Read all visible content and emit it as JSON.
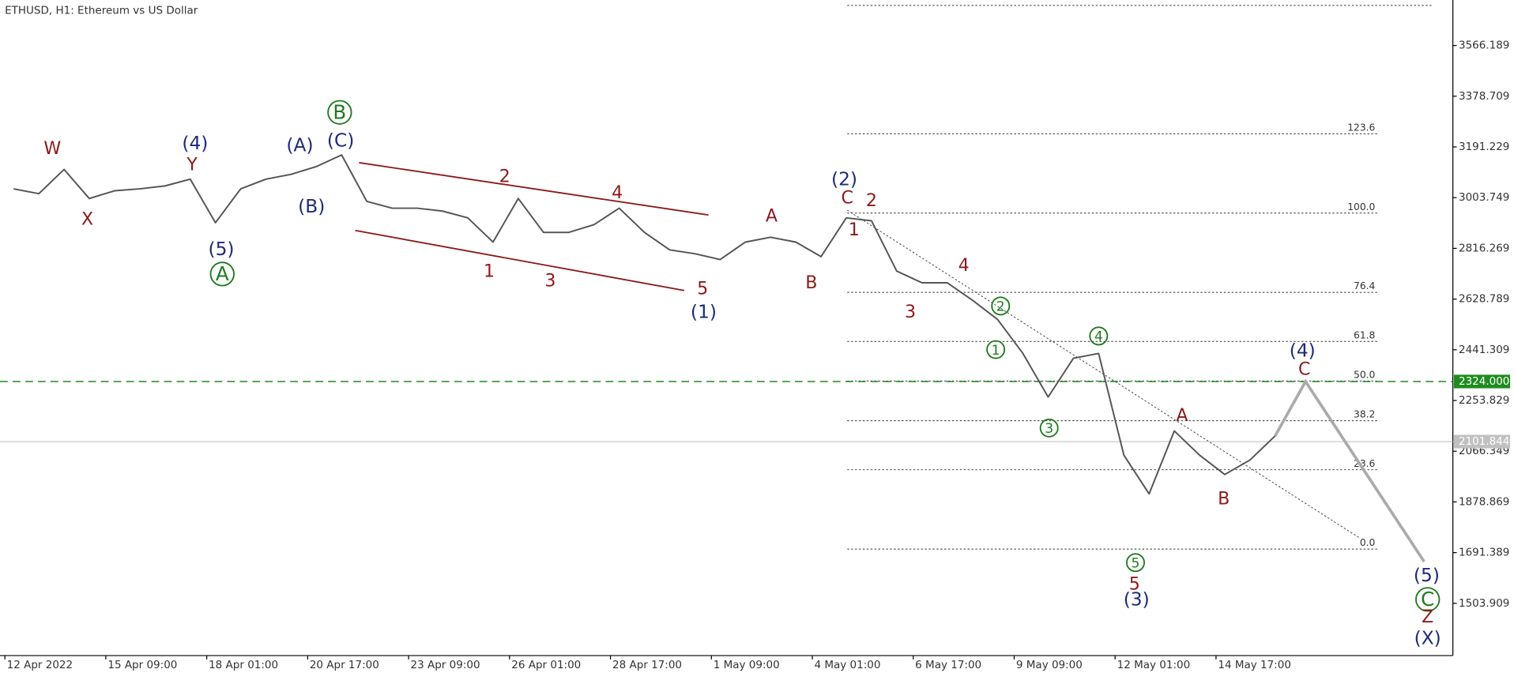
{
  "chart_data": {
    "type": "line",
    "title": "ETHUSD, H1:  Ethereum vs US Dollar",
    "categories": [
      null,
      "12 Apr 2022",
      null,
      null,
      null,
      "15 Apr 09:00",
      null,
      null,
      null,
      "18 Apr 01:00",
      null,
      null,
      null,
      "20 Apr 17:00",
      null,
      null,
      null,
      "23 Apr 09:00",
      null,
      null,
      null,
      "26 Apr 01:00",
      null,
      null,
      null,
      "28 Apr 17:00",
      null,
      null,
      null,
      "1 May 09:00",
      null,
      null,
      null,
      "4 May 01:00",
      null,
      null,
      null,
      "6 May 17:00",
      null,
      null,
      null,
      "9 May 09:00",
      null,
      null,
      null,
      "12 May 01:00",
      null,
      null,
      null,
      "14 May 17:00",
      null
    ],
    "series": [
      {
        "name": "ETHUSD",
        "color": "#555555",
        "values": [
          3036.4,
          3018.5,
          3108.0,
          3000.6,
          3029.2,
          3036.4,
          3047.1,
          3072.2,
          2911.1,
          3036.4,
          3072.2,
          3090.1,
          3118.7,
          3161.7,
          2989.8,
          2964.8,
          2964.8,
          2954.0,
          2929.0,
          2839.5,
          3000.6,
          2875.3,
          2875.3,
          2903.9,
          2964.8,
          2875.3,
          2810.8,
          2796.5,
          2775.0,
          2839.5,
          2857.4,
          2839.5,
          2785.8,
          2929.0,
          2918.2,
          2732.1,
          2689.1,
          2689.1,
          2624.7,
          2553.1,
          2427.8,
          2266.7,
          2409.9,
          2427.8,
          2051.9,
          1908.7,
          2141.4,
          2051.9,
          1980.3,
          2034.0,
          2123.5
        ]
      }
    ],
    "projection": {
      "color": "#aaaaaa",
      "x": [
        50,
        51.2,
        55.9
      ],
      "values": [
        2123.5,
        2324,
        1658
      ]
    },
    "xlim": [
      -0.54,
      57.04
    ],
    "ylim": [
      1310.79,
      3734.45
    ],
    "yticks": [
      3566.189,
      3378.709,
      3191.229,
      3003.749,
      2816.269,
      2628.789,
      2441.309,
      2253.829,
      2066.349,
      1878.869,
      1691.389,
      1503.909
    ],
    "hlines": [
      {
        "value": 2324,
        "label": "2324.000",
        "color": "#1e8c1e"
      },
      {
        "value": 2101.844,
        "label": "2101.844",
        "color": "#c0c0c0"
      }
    ],
    "fib": {
      "from": 1704.6,
      "to": 2946.8,
      "levels": [
        {
          "value": 161.8
        },
        {
          "value": 123.6,
          "label": "123.6"
        },
        {
          "value": 100,
          "label": "100.0"
        },
        {
          "value": 76.4,
          "label": "76.4"
        },
        {
          "value": 61.8,
          "label": "61.8"
        },
        {
          "value": 50,
          "label": "50.0"
        },
        {
          "value": 38.2,
          "label": "38.2"
        },
        {
          "value": 23.6,
          "label": "23.6"
        },
        {
          "value": 0,
          "label": "0.0"
        }
      ]
    },
    "annotations": [
      {
        "text": "W",
        "color": "#8b1a1a"
      },
      {
        "text": "X",
        "color": "#8b1a1a"
      },
      {
        "text": "Y",
        "color": "#8b1a1a"
      },
      {
        "text": "(4)",
        "color": "#1f2a7a"
      },
      {
        "text": "(5)",
        "color": "#1f2a7a"
      },
      {
        "text": "A",
        "color": "#1e7b1e",
        "circled": true
      },
      {
        "text": "(A)",
        "color": "#1f2a7a"
      },
      {
        "text": "(B)",
        "color": "#1f2a7a"
      },
      {
        "text": "(C)",
        "color": "#1f2a7a"
      },
      {
        "text": "B",
        "color": "#1e7b1e",
        "circled": true
      },
      {
        "text": "2",
        "color": "#8b1a1a"
      },
      {
        "text": "4",
        "color": "#8b1a1a"
      },
      {
        "text": "1",
        "color": "#8b1a1a"
      },
      {
        "text": "3",
        "color": "#8b1a1a"
      },
      {
        "text": "5",
        "color": "#8b1a1a"
      },
      {
        "text": "(1)",
        "color": "#1f2a7a"
      },
      {
        "text": "A",
        "color": "#8b1a1a"
      },
      {
        "text": "B",
        "color": "#8b1a1a"
      },
      {
        "text": "(2)",
        "color": "#1f2a7a"
      },
      {
        "text": "C",
        "color": "#8b1a1a"
      },
      {
        "text": "2",
        "color": "#8b1a1a"
      },
      {
        "text": "1",
        "color": "#8b1a1a"
      },
      {
        "text": "4",
        "color": "#8b1a1a"
      },
      {
        "text": "3",
        "color": "#8b1a1a"
      },
      {
        "text": "2",
        "color": "#1e7b1e",
        "circled": true,
        "small": true
      },
      {
        "text": "1",
        "color": "#1e7b1e",
        "circled": true,
        "small": true
      },
      {
        "text": "4",
        "color": "#1e7b1e",
        "circled": true,
        "small": true
      },
      {
        "text": "3",
        "color": "#1e7b1e",
        "circled": true,
        "small": true
      },
      {
        "text": "5",
        "color": "#1e7b1e",
        "circled": true,
        "small": true
      },
      {
        "text": "5",
        "color": "#8b1a1a"
      },
      {
        "text": "(3)",
        "color": "#1f2a7a"
      },
      {
        "text": "A",
        "color": "#8b1a1a"
      },
      {
        "text": "B",
        "color": "#8b1a1a"
      },
      {
        "text": "(4)",
        "color": "#1f2a7a"
      },
      {
        "text": "C",
        "color": "#8b1a1a"
      },
      {
        "text": "(5)",
        "color": "#1f2a7a"
      },
      {
        "text": "C",
        "color": "#1e7b1e",
        "circled": true
      },
      {
        "text": "Z",
        "color": "#8b1a1a"
      },
      {
        "text": "(X)",
        "color": "#1f2a7a"
      }
    ]
  }
}
